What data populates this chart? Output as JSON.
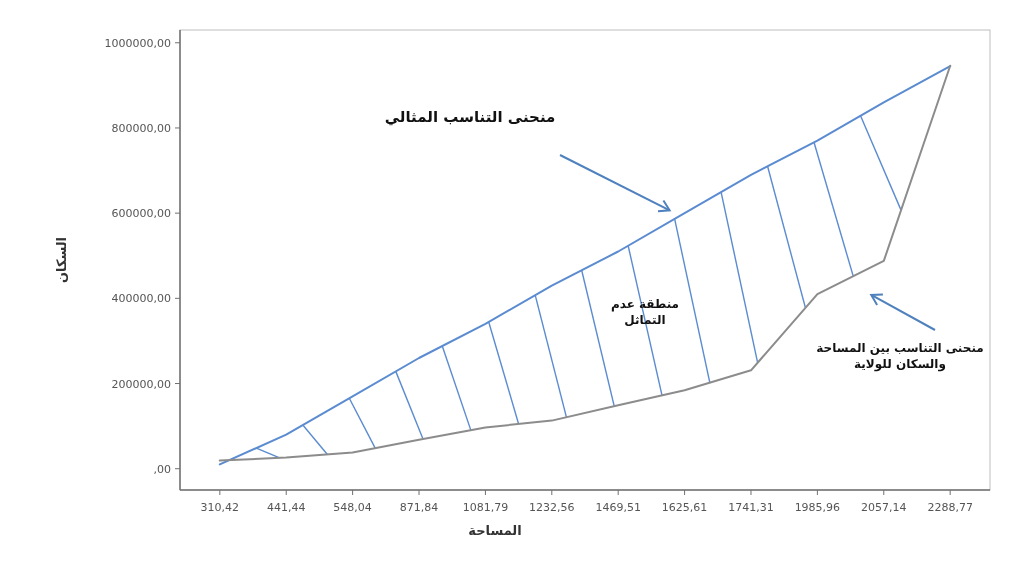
{
  "chart_data": {
    "type": "line",
    "xlabel": "المساحة",
    "ylabel": "السكان",
    "categories": [
      "310,42",
      "441,44",
      "548,04",
      "871,84",
      "1081,79",
      "1232,56",
      "1469,51",
      "1625,61",
      "1741,31",
      "1985,96",
      "2057,14",
      "2288,77"
    ],
    "series": [
      {
        "color": "#5b8bd0",
        "values": [
          10000,
          80000,
          170000,
          260000,
          340000,
          430000,
          510000,
          600000,
          690000,
          770000,
          860000,
          945000
        ]
      },
      {
        "color": "#8c8c8c",
        "values": [
          19000,
          26000,
          38000,
          68000,
          97000,
          113000,
          149000,
          184000,
          231000,
          410000,
          488000,
          946000
        ]
      }
    ],
    "ylim": [
      -50000,
      1030000
    ],
    "yticks": [
      {
        "value": 0,
        "label": ",00"
      },
      {
        "value": 200000,
        "label": "200000,00"
      },
      {
        "value": 400000,
        "label": "400000,00"
      },
      {
        "value": 600000,
        "label": "600000,00"
      },
      {
        "value": 800000,
        "label": "800000,00"
      },
      {
        "value": 1000000,
        "label": "1000000,00"
      }
    ],
    "annotations": [
      "منحنى التناسب المثالي",
      "منحنى التناسب بين المساحة والسكان للولاية",
      "منطقة عدم التماثل"
    ],
    "grid": false
  }
}
